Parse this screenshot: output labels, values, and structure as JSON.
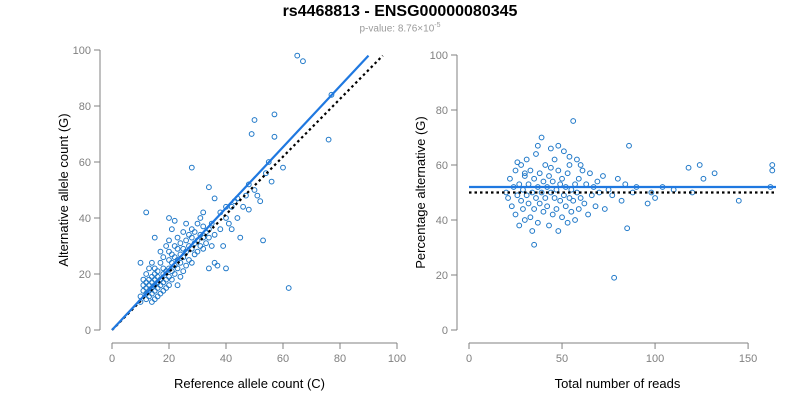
{
  "figure": {
    "title": "rs4468813 - ENSG00000080345",
    "subtitle_prefix": "p-value: 8.76×10",
    "subtitle_exponent": "-5",
    "point_color": "#1f78c8",
    "fit_color": "#1f78e0",
    "reference_line_color": "#000000",
    "axis_color": "#808080"
  },
  "chart_data": [
    {
      "type": "scatter",
      "title": "",
      "xlabel": "Reference allele count (C)",
      "ylabel": "Alternative allele count (G)",
      "xlim": [
        0,
        100
      ],
      "ylim": [
        0,
        100
      ],
      "xticks": [
        0,
        20,
        40,
        60,
        80,
        100
      ],
      "yticks": [
        0,
        20,
        40,
        60,
        80,
        100
      ],
      "grid": false,
      "fit_line": {
        "from": [
          0,
          0
        ],
        "to": [
          90,
          98
        ],
        "style": "solid"
      },
      "reference_line": {
        "from": [
          0,
          0
        ],
        "to": [
          95,
          98
        ],
        "style": "dotted"
      },
      "points": [
        [
          10,
          10
        ],
        [
          10,
          12
        ],
        [
          11,
          14
        ],
        [
          11,
          16
        ],
        [
          11,
          18
        ],
        [
          12,
          11
        ],
        [
          12,
          13
        ],
        [
          12,
          15
        ],
        [
          12,
          17
        ],
        [
          12,
          20
        ],
        [
          13,
          12
        ],
        [
          13,
          14
        ],
        [
          13,
          16
        ],
        [
          13,
          18
        ],
        [
          13,
          22
        ],
        [
          14,
          10
        ],
        [
          14,
          13
        ],
        [
          14,
          15
        ],
        [
          14,
          17
        ],
        [
          14,
          19
        ],
        [
          14,
          24
        ],
        [
          15,
          11
        ],
        [
          15,
          14
        ],
        [
          15,
          16
        ],
        [
          15,
          18
        ],
        [
          15,
          20
        ],
        [
          15,
          22
        ],
        [
          16,
          12
        ],
        [
          16,
          15
        ],
        [
          16,
          17
        ],
        [
          16,
          19
        ],
        [
          16,
          21
        ],
        [
          17,
          13
        ],
        [
          17,
          16
        ],
        [
          17,
          18
        ],
        [
          17,
          24
        ],
        [
          17,
          28
        ],
        [
          18,
          14
        ],
        [
          18,
          17
        ],
        [
          18,
          20
        ],
        [
          18,
          22
        ],
        [
          18,
          26
        ],
        [
          19,
          15
        ],
        [
          19,
          18
        ],
        [
          19,
          21
        ],
        [
          19,
          30
        ],
        [
          20,
          16
        ],
        [
          20,
          19
        ],
        [
          20,
          22
        ],
        [
          20,
          25
        ],
        [
          20,
          28
        ],
        [
          20,
          32
        ],
        [
          21,
          18
        ],
        [
          21,
          21
        ],
        [
          21,
          24
        ],
        [
          21,
          27
        ],
        [
          21,
          36
        ],
        [
          22,
          20
        ],
        [
          22,
          23
        ],
        [
          22,
          26
        ],
        [
          22,
          30
        ],
        [
          22,
          39
        ],
        [
          23,
          16
        ],
        [
          23,
          22
        ],
        [
          23,
          25
        ],
        [
          23,
          29
        ],
        [
          23,
          33
        ],
        [
          24,
          19
        ],
        [
          24,
          24
        ],
        [
          24,
          27
        ],
        [
          24,
          31
        ],
        [
          25,
          21
        ],
        [
          25,
          26
        ],
        [
          25,
          29
        ],
        [
          25,
          35
        ],
        [
          26,
          23
        ],
        [
          26,
          28
        ],
        [
          26,
          32
        ],
        [
          26,
          38
        ],
        [
          27,
          25
        ],
        [
          27,
          30
        ],
        [
          27,
          34
        ],
        [
          28,
          24
        ],
        [
          28,
          29
        ],
        [
          28,
          33
        ],
        [
          28,
          36
        ],
        [
          29,
          27
        ],
        [
          29,
          31
        ],
        [
          29,
          35
        ],
        [
          30,
          28
        ],
        [
          30,
          32
        ],
        [
          30,
          38
        ],
        [
          31,
          30
        ],
        [
          31,
          34
        ],
        [
          31,
          40
        ],
        [
          32,
          29
        ],
        [
          32,
          33
        ],
        [
          32,
          37
        ],
        [
          33,
          31
        ],
        [
          33,
          35
        ],
        [
          34,
          22
        ],
        [
          34,
          33
        ],
        [
          34,
          36
        ],
        [
          35,
          30
        ],
        [
          35,
          38
        ],
        [
          36,
          24
        ],
        [
          36,
          34
        ],
        [
          37,
          23
        ],
        [
          38,
          36
        ],
        [
          38,
          42
        ],
        [
          39,
          30
        ],
        [
          40,
          22
        ],
        [
          40,
          40
        ],
        [
          40,
          44
        ],
        [
          41,
          38
        ],
        [
          42,
          36
        ],
        [
          42,
          44
        ],
        [
          43,
          46
        ],
        [
          44,
          40
        ],
        [
          44,
          47
        ],
        [
          45,
          33
        ],
        [
          46,
          44
        ],
        [
          47,
          48
        ],
        [
          48,
          43
        ],
        [
          48,
          52
        ],
        [
          49,
          70
        ],
        [
          50,
          75
        ],
        [
          50,
          50
        ],
        [
          51,
          48
        ],
        [
          52,
          46
        ],
        [
          53,
          32
        ],
        [
          54,
          56
        ],
        [
          55,
          60
        ],
        [
          56,
          53
        ],
        [
          57,
          69
        ],
        [
          57,
          77
        ],
        [
          60,
          58
        ],
        [
          62,
          15
        ],
        [
          65,
          98
        ],
        [
          67,
          96
        ],
        [
          76,
          68
        ],
        [
          77,
          84
        ],
        [
          34,
          51
        ],
        [
          36,
          47
        ],
        [
          28,
          58
        ],
        [
          32,
          42
        ],
        [
          20,
          40
        ],
        [
          10,
          24
        ],
        [
          12,
          42
        ],
        [
          15,
          33
        ]
      ]
    },
    {
      "type": "scatter",
      "title": "",
      "xlabel": "Total number of reads",
      "ylabel": "Percentage alternative (G)",
      "xlim": [
        0,
        165
      ],
      "ylim": [
        0,
        100
      ],
      "xticks": [
        0,
        50,
        100,
        150
      ],
      "yticks": [
        0,
        20,
        40,
        60,
        80,
        100
      ],
      "grid": false,
      "fit_line": {
        "from": [
          0,
          52
        ],
        "to": [
          165,
          52
        ],
        "style": "solid"
      },
      "reference_line": {
        "from": [
          0,
          50
        ],
        "to": [
          165,
          50
        ],
        "style": "dotted"
      },
      "points": [
        [
          20,
          50
        ],
        [
          21,
          48
        ],
        [
          22,
          55
        ],
        [
          23,
          45
        ],
        [
          24,
          52
        ],
        [
          25,
          58
        ],
        [
          25,
          42
        ],
        [
          26,
          49
        ],
        [
          27,
          53
        ],
        [
          27,
          38
        ],
        [
          28,
          47
        ],
        [
          28,
          60
        ],
        [
          29,
          51
        ],
        [
          29,
          44
        ],
        [
          30,
          56
        ],
        [
          30,
          40
        ],
        [
          31,
          49
        ],
        [
          31,
          62
        ],
        [
          32,
          46
        ],
        [
          32,
          53
        ],
        [
          33,
          41
        ],
        [
          33,
          58
        ],
        [
          34,
          50
        ],
        [
          34,
          36
        ],
        [
          35,
          55
        ],
        [
          35,
          44
        ],
        [
          36,
          48
        ],
        [
          36,
          64
        ],
        [
          37,
          52
        ],
        [
          37,
          39
        ],
        [
          38,
          46
        ],
        [
          38,
          57
        ],
        [
          39,
          50
        ],
        [
          39,
          70
        ],
        [
          40,
          43
        ],
        [
          40,
          54
        ],
        [
          41,
          48
        ],
        [
          41,
          60
        ],
        [
          42,
          45
        ],
        [
          42,
          52
        ],
        [
          43,
          38
        ],
        [
          43,
          56
        ],
        [
          44,
          50
        ],
        [
          44,
          66
        ],
        [
          45,
          42
        ],
        [
          45,
          54
        ],
        [
          46,
          48
        ],
        [
          46,
          62
        ],
        [
          47,
          44
        ],
        [
          47,
          51
        ],
        [
          48,
          36
        ],
        [
          48,
          58
        ],
        [
          49,
          47
        ],
        [
          49,
          53
        ],
        [
          50,
          41
        ],
        [
          50,
          55
        ],
        [
          51,
          49
        ],
        [
          51,
          65
        ],
        [
          52,
          45
        ],
        [
          52,
          52
        ],
        [
          53,
          39
        ],
        [
          53,
          57
        ],
        [
          54,
          48
        ],
        [
          54,
          60
        ],
        [
          55,
          43
        ],
        [
          55,
          51
        ],
        [
          56,
          47
        ],
        [
          56,
          76
        ],
        [
          57,
          53
        ],
        [
          57,
          40
        ],
        [
          58,
          50
        ],
        [
          58,
          62
        ],
        [
          59,
          44
        ],
        [
          59,
          55
        ],
        [
          60,
          48
        ],
        [
          61,
          58
        ],
        [
          62,
          46
        ],
        [
          63,
          53
        ],
        [
          64,
          42
        ],
        [
          65,
          57
        ],
        [
          66,
          49
        ],
        [
          67,
          52
        ],
        [
          68,
          45
        ],
        [
          69,
          54
        ],
        [
          70,
          50
        ],
        [
          72,
          56
        ],
        [
          73,
          44
        ],
        [
          75,
          51
        ],
        [
          77,
          49
        ],
        [
          78,
          19
        ],
        [
          80,
          55
        ],
        [
          82,
          47
        ],
        [
          84,
          53
        ],
        [
          85,
          37
        ],
        [
          86,
          67
        ],
        [
          88,
          50
        ],
        [
          90,
          52
        ],
        [
          96,
          46
        ],
        [
          98,
          50
        ],
        [
          100,
          48
        ],
        [
          104,
          52
        ],
        [
          110,
          51
        ],
        [
          118,
          59
        ],
        [
          120,
          50
        ],
        [
          124,
          60
        ],
        [
          126,
          55
        ],
        [
          132,
          57
        ],
        [
          145,
          47
        ],
        [
          162,
          52
        ],
        [
          163,
          58
        ],
        [
          163,
          60
        ],
        [
          35,
          31
        ],
        [
          30,
          57
        ],
        [
          26,
          61
        ],
        [
          44,
          59
        ],
        [
          60,
          60
        ],
        [
          37,
          67
        ],
        [
          48,
          67
        ],
        [
          54,
          63
        ]
      ]
    }
  ]
}
